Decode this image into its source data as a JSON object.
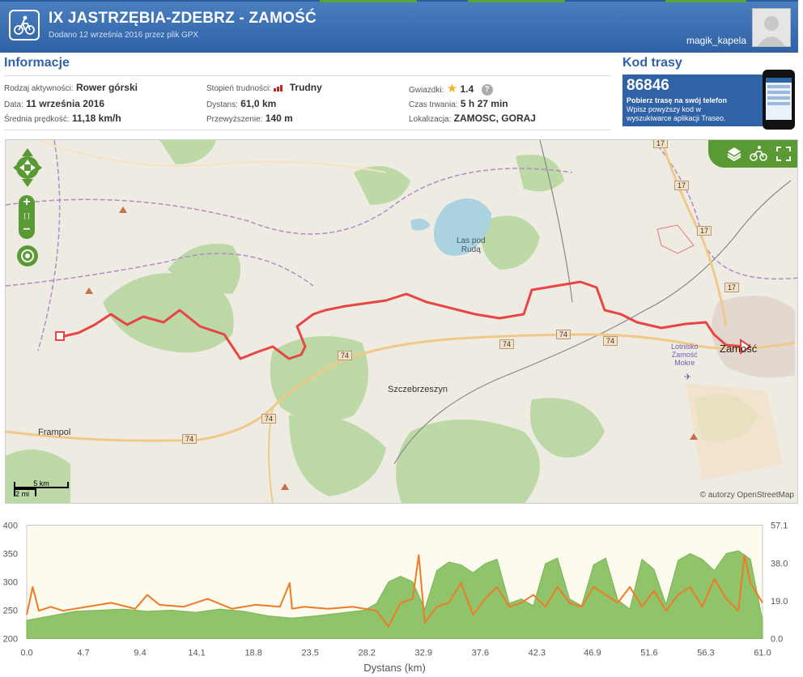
{
  "header": {
    "title": "IX JASTRZĘBIA-ZDEBRZ - ZAMOŚĆ",
    "subtitle": "Dodano 12 września 2016 przez plik GPX",
    "username": "magik_kapela"
  },
  "info": {
    "heading": "Informacje",
    "activity_label": "Rodzaj aktywności:",
    "activity_value": "Rower górski",
    "difficulty_label": "Stopień trudności:",
    "difficulty_value": "Trudny",
    "stars_label": "Gwiazdki:",
    "stars_value": "1.4",
    "date_label": "Data:",
    "date_value": "11 września 2016",
    "distance_label": "Dystans:",
    "distance_value": "61,0 km",
    "duration_label": "Czas trwania:",
    "duration_value": "5 h 27 min",
    "speed_label": "Średnia prędkość:",
    "speed_value": "11,18 km/h",
    "climb_label": "Przewyższenie:",
    "climb_value": "140 m",
    "location_label": "Lokalizacja:",
    "location_value": "ZAMOSC, GORAJ"
  },
  "code": {
    "heading": "Kod trasy",
    "number": "86846",
    "line1": "Pobierz trasę na swój telefon",
    "line2": "Wpisz powyższy kod w",
    "line3": "wyszukiwarce aplikacji Traseo."
  },
  "map": {
    "labels": {
      "lake": "Las pod",
      "lake2": "Rudą",
      "szczebrzeszyn": "Szczebrzeszyn",
      "frampol": "Frampol",
      "zamosc": "Zamość",
      "airport1": "Lotnisko",
      "airport2": "Zamość",
      "airport3": "Mokre"
    },
    "roads": [
      "17",
      "17",
      "17",
      "17",
      "74",
      "74",
      "74",
      "74",
      "74",
      "74"
    ],
    "scale_km": "5 km",
    "scale_mi": "2 mi",
    "attribution": "© autorzy OpenStreetMap",
    "icons": [
      "layers-icon",
      "bike-map-icon",
      "fullscreen-icon",
      "pan-icon",
      "zoom-in-icon",
      "zoom-out-icon",
      "locate-icon"
    ]
  },
  "chart_data": {
    "type": "area",
    "xlabel": "Dystans (km)",
    "x_ticks": [
      "0.0",
      "4.7",
      "9.4",
      "14.1",
      "18.8",
      "23.5",
      "28.2",
      "32.9",
      "37.6",
      "42.3",
      "46.9",
      "51.6",
      "56.3",
      "61.0"
    ],
    "y_left_ticks": [
      "400",
      "350",
      "300",
      "250",
      "200"
    ],
    "y_right_ticks": [
      "57.1",
      "38.0",
      "19.0",
      "0.0"
    ],
    "ylim_left": [
      200,
      400
    ],
    "ylim_right": [
      0,
      57.1
    ],
    "xlim": [
      0,
      61.0
    ],
    "series": [
      {
        "name": "",
        "axis": "left",
        "color": "#8fc46a",
        "x": [
          0,
          2,
          4,
          6,
          8,
          10,
          12,
          14,
          16,
          18,
          20,
          22,
          24,
          26,
          28,
          29,
          30,
          31,
          32,
          33,
          34,
          35,
          36,
          37,
          38,
          39,
          40,
          41,
          42,
          43,
          44,
          45,
          46,
          47,
          48,
          49,
          50,
          51,
          52,
          53,
          54,
          55,
          56,
          57,
          58,
          59,
          60,
          61
        ],
        "y": [
          232,
          240,
          248,
          250,
          252,
          248,
          250,
          246,
          252,
          248,
          240,
          236,
          240,
          245,
          250,
          262,
          300,
          310,
          300,
          252,
          320,
          335,
          330,
          316,
          332,
          340,
          262,
          270,
          258,
          332,
          342,
          270,
          258,
          330,
          342,
          268,
          252,
          340,
          322,
          260,
          338,
          350,
          340,
          320,
          350,
          355,
          340,
          232
        ]
      },
      {
        "name": "",
        "axis": "right",
        "color": "#f07a28",
        "x": [
          0,
          0.5,
          1,
          2,
          3,
          5,
          7,
          9,
          10,
          11,
          13,
          15,
          17,
          19,
          21,
          21.8,
          22,
          23,
          25,
          27,
          29,
          30,
          31,
          32,
          32.5,
          33,
          34,
          35,
          36,
          37,
          38,
          39,
          40,
          41,
          42,
          43,
          44,
          45,
          46,
          47,
          48,
          49,
          50,
          51,
          52,
          53,
          54,
          55,
          56,
          57,
          58,
          59,
          59.5,
          60,
          61
        ],
        "y": [
          12,
          26,
          14,
          16,
          14,
          16,
          18,
          15,
          22,
          17,
          16,
          20,
          15,
          17,
          16,
          28,
          15,
          16,
          15,
          16,
          14,
          6,
          18,
          20,
          42,
          8,
          16,
          18,
          28,
          12,
          20,
          26,
          16,
          18,
          22,
          16,
          26,
          18,
          16,
          26,
          22,
          18,
          26,
          16,
          24,
          14,
          22,
          26,
          16,
          30,
          20,
          14,
          42,
          28,
          18
        ]
      }
    ]
  }
}
